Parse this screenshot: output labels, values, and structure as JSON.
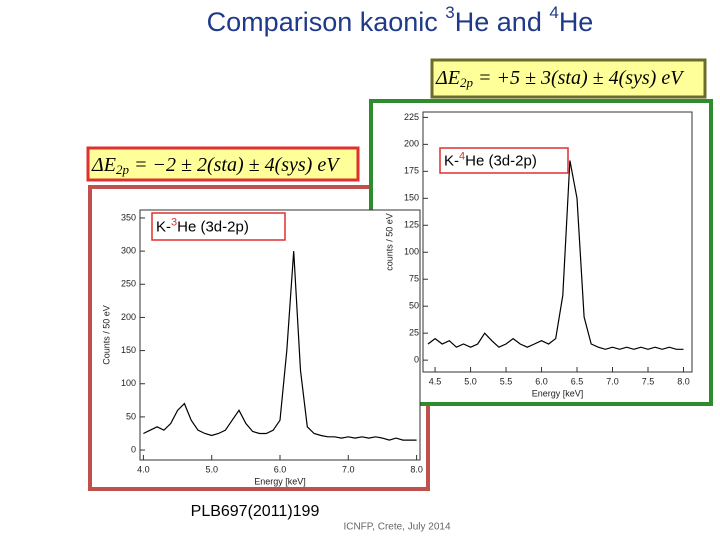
{
  "slide": {
    "title_parts": [
      "Comparison kaonic ",
      "3",
      "He and ",
      "4",
      "He"
    ],
    "reference": "PLB697(2011)199",
    "footer": "ICNFP, Crete, July 2014"
  },
  "chart_data": [
    {
      "type": "line",
      "annotation_parts": [
        "K-",
        "3",
        "He (3d-2p)"
      ],
      "formula": {
        "delta": "ΔE",
        "sub": "2p",
        "rest": " = −2 ± 2(sta) ± 4(sys) eV"
      },
      "xlabel": "Energy [keV]",
      "ylabel": "Counts / 50 eV",
      "color": "#000000",
      "x": [
        4.0,
        4.1,
        4.2,
        4.3,
        4.4,
        4.5,
        4.6,
        4.7,
        4.8,
        4.9,
        5.0,
        5.1,
        5.2,
        5.3,
        5.4,
        5.5,
        5.6,
        5.7,
        5.8,
        5.9,
        6.0,
        6.1,
        6.2,
        6.3,
        6.4,
        6.5,
        6.6,
        6.7,
        6.8,
        6.9,
        7.0,
        7.1,
        7.2,
        7.3,
        7.4,
        7.5,
        7.6,
        7.7,
        7.8,
        7.9,
        8.0
      ],
      "values": [
        25,
        30,
        35,
        30,
        40,
        60,
        70,
        45,
        30,
        25,
        22,
        25,
        30,
        45,
        60,
        40,
        28,
        25,
        25,
        30,
        45,
        150,
        300,
        120,
        35,
        25,
        22,
        20,
        20,
        18,
        20,
        18,
        20,
        18,
        20,
        18,
        15,
        18,
        15,
        15,
        15
      ],
      "xlim": [
        3.95,
        8.05
      ],
      "ylim": [
        -15,
        362
      ],
      "xticks": [
        {
          "value": 4,
          "label": "4.0"
        },
        {
          "value": 5,
          "label": "5.0"
        },
        {
          "value": 6,
          "label": "6.0"
        },
        {
          "value": 7,
          "label": "7.0"
        },
        {
          "value": 8,
          "label": "8.0"
        }
      ],
      "yticks": [
        0,
        50,
        100,
        150,
        200,
        250,
        300,
        350
      ]
    },
    {
      "type": "line",
      "annotation_parts": [
        "K-",
        "4",
        "He (3d-2p)"
      ],
      "formula": {
        "delta": "ΔE",
        "sub": "2p",
        "rest": " = +5 ± 3(sta) ± 4(sys) eV"
      },
      "xlabel": "Energy [keV]",
      "ylabel": "counts / 50 eV",
      "color": "#000000",
      "x": [
        4.4,
        4.5,
        4.6,
        4.7,
        4.8,
        4.9,
        5.0,
        5.1,
        5.2,
        5.3,
        5.4,
        5.5,
        5.6,
        5.7,
        5.8,
        5.9,
        6.0,
        6.1,
        6.2,
        6.3,
        6.4,
        6.5,
        6.6,
        6.7,
        6.8,
        6.9,
        7.0,
        7.1,
        7.2,
        7.3,
        7.4,
        7.5,
        7.6,
        7.7,
        7.8,
        7.9,
        8.0
      ],
      "values": [
        15,
        20,
        15,
        18,
        12,
        15,
        12,
        15,
        25,
        18,
        12,
        15,
        20,
        15,
        12,
        15,
        18,
        15,
        20,
        60,
        185,
        150,
        40,
        15,
        12,
        10,
        12,
        10,
        12,
        10,
        12,
        10,
        12,
        10,
        12,
        10,
        10
      ],
      "xlim": [
        4.33,
        8.12
      ],
      "ylim": [
        -11,
        230
      ],
      "xticks": [
        4.5,
        {
          "value": 5,
          "label": "5.0"
        },
        5.5,
        {
          "value": 6,
          "label": "6.0"
        },
        6.5,
        {
          "value": 7,
          "label": "7.0"
        },
        7.5,
        {
          "value": 8,
          "label": "8.0"
        }
      ],
      "yticks": [
        0,
        25,
        50,
        75,
        100,
        125,
        150,
        175,
        200,
        225
      ]
    }
  ]
}
